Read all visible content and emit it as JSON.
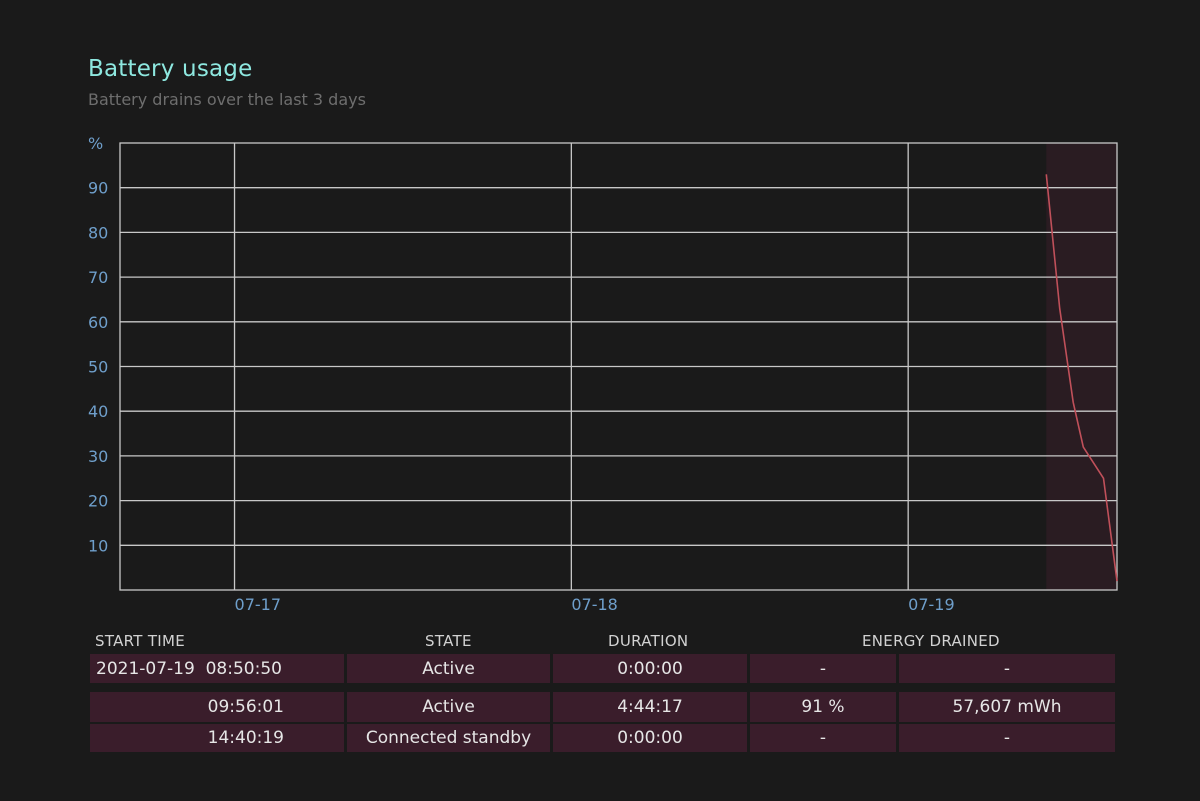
{
  "report": {
    "title": "Battery usage",
    "subtitle": "Battery drains over the last 3 days"
  },
  "colors": {
    "background": "#1a1a1a",
    "title": "#8ee8e0",
    "axis_labels": "#6f9fcb",
    "grid": "#c8c8c8",
    "drain_line": "#c0505a",
    "highlight_band": "#2a1c22",
    "table_cell": "#3a1d2b"
  },
  "chart_data": {
    "type": "line",
    "y_unit_label": "%",
    "yticks": [
      90,
      80,
      70,
      60,
      50,
      40,
      30,
      20,
      10
    ],
    "ylim": [
      0,
      100
    ],
    "xticks": [
      "07-17",
      "07-18",
      "07-19"
    ],
    "xlim_days": [
      -0.34,
      2.62
    ],
    "highlight_range_days": [
      2.41,
      2.62
    ],
    "series": [
      {
        "points": [
          {
            "x": 2.41,
            "y": 93
          },
          {
            "x": 2.45,
            "y": 63
          },
          {
            "x": 2.49,
            "y": 42
          },
          {
            "x": 2.52,
            "y": 32
          },
          {
            "x": 2.58,
            "y": 25
          },
          {
            "x": 2.62,
            "y": 2
          }
        ]
      }
    ],
    "grid": true
  },
  "table": {
    "headers": {
      "start_time": "START TIME",
      "state": "STATE",
      "duration": "DURATION",
      "energy_drained": "ENERGY DRAINED"
    },
    "rows": [
      {
        "start_time": "2021-07-19  08:50:50",
        "state": "Active",
        "duration": "0:00:00",
        "percent": "-",
        "mwh": "-"
      },
      {
        "start_time": "09:56:01",
        "state": "Active",
        "duration": "4:44:17",
        "percent": "91 %",
        "mwh": "57,607 mWh"
      },
      {
        "start_time": "14:40:19",
        "state": "Connected standby",
        "duration": "0:00:00",
        "percent": "-",
        "mwh": "-"
      }
    ]
  }
}
